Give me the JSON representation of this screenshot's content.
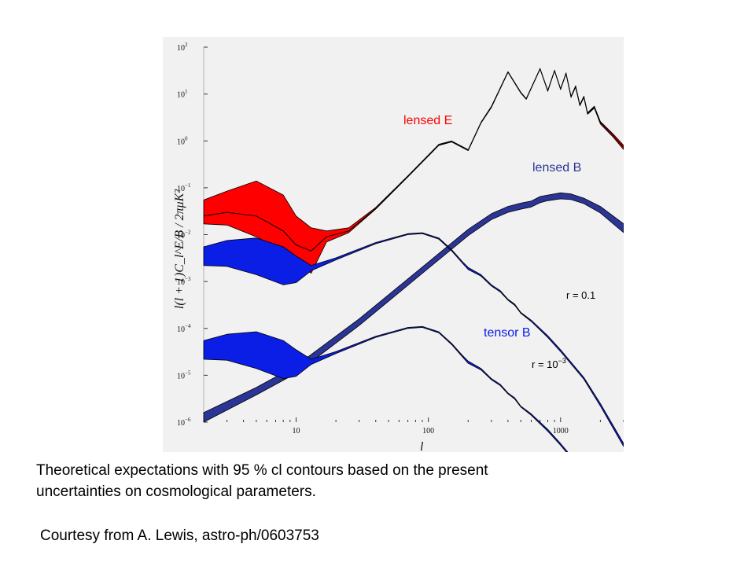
{
  "chart_data": {
    "type": "line",
    "x_scale": "log",
    "y_scale": "log",
    "xlim": [
      2,
      3000
    ],
    "ylim": [
      1e-06,
      100
    ],
    "x_ticks": [
      {
        "value": 10,
        "label": "10"
      },
      {
        "value": 100,
        "label": "100"
      },
      {
        "value": 1000,
        "label": "1000"
      }
    ],
    "y_ticks": [
      {
        "value": 100,
        "base": "10",
        "exp": "2"
      },
      {
        "value": 10,
        "base": "10",
        "exp": "1"
      },
      {
        "value": 1,
        "base": "10",
        "exp": "0"
      },
      {
        "value": 0.1,
        "base": "10",
        "exp": "−1"
      },
      {
        "value": 0.01,
        "base": "10",
        "exp": "−2"
      },
      {
        "value": 0.001,
        "base": "10",
        "exp": "−3"
      },
      {
        "value": 0.0001,
        "base": "10",
        "exp": "−4"
      },
      {
        "value": 1e-05,
        "base": "10",
        "exp": "−5"
      },
      {
        "value": 1e-06,
        "base": "10",
        "exp": "−6"
      }
    ],
    "xlabel": "l",
    "ylabel": "l(l + 1)C_l^E/B / 2πμK²",
    "grid": false,
    "colors": {
      "lensed_E": "#ff0000",
      "lensed_B": "#2b3596",
      "tensor_B": "#0a1ee6",
      "line": "#000000"
    },
    "series": [
      {
        "name": "lensed E",
        "color": "#ff0000",
        "x": [
          2,
          3,
          5,
          8,
          10,
          13,
          17,
          25,
          40,
          70,
          120,
          150,
          200,
          250,
          300,
          400,
          500,
          550,
          700,
          800,
          900,
          1000,
          1100,
          1200,
          1300,
          1400,
          1500,
          1600,
          1800,
          2000,
          2500,
          3000
        ],
        "upper": [
          0.055,
          0.085,
          0.14,
          0.07,
          0.025,
          0.014,
          0.012,
          0.014,
          0.038,
          0.18,
          0.85,
          1.0,
          0.65,
          2.5,
          5.5,
          30,
          11,
          8,
          35,
          12,
          32,
          13,
          28,
          9,
          15,
          6,
          9,
          4,
          5.5,
          2.6,
          1.4,
          0.8
        ],
        "lower": [
          0.017,
          0.016,
          0.009,
          0.0045,
          0.0025,
          0.0015,
          0.007,
          0.011,
          0.035,
          0.17,
          0.8,
          0.95,
          0.62,
          2.4,
          5.2,
          29,
          10.5,
          7.7,
          34,
          11.5,
          31,
          12.5,
          27,
          8.5,
          14,
          5.6,
          8.4,
          3.7,
          5,
          2.3,
          1.2,
          0.65
        ],
        "center": [
          0.025,
          0.03,
          0.025,
          0.012,
          0.006,
          0.0045,
          0.009,
          0.012,
          0.036,
          0.175,
          0.82,
          0.97,
          0.63,
          2.45,
          5.35,
          29.5,
          10.7,
          7.85,
          34.5,
          11.7,
          31.5,
          12.7,
          27.5,
          8.7,
          14.5,
          5.8,
          8.7,
          3.85,
          5.2,
          2.45,
          1.3,
          0.72
        ]
      },
      {
        "name": "lensed B",
        "color": "#2b3596",
        "x": [
          2,
          5,
          10,
          30,
          100,
          200,
          300,
          400,
          500,
          600,
          700,
          800,
          1000,
          1200,
          1500,
          2000,
          3000
        ],
        "upper": [
          1.6e-06,
          5.5e-06,
          1.6e-05,
          0.00016,
          0.0026,
          0.013,
          0.028,
          0.04,
          0.047,
          0.052,
          0.065,
          0.07,
          0.078,
          0.074,
          0.06,
          0.04,
          0.017
        ],
        "lower": [
          1e-06,
          3.8e-06,
          1.1e-05,
          0.000115,
          0.0019,
          0.0095,
          0.021,
          0.03,
          0.035,
          0.039,
          0.048,
          0.053,
          0.058,
          0.056,
          0.046,
          0.029,
          0.011
        ]
      },
      {
        "name": "tensor B r = 0.1",
        "color": "#0a1ee6",
        "x": [
          2,
          3,
          5,
          8,
          10,
          13,
          20,
          40,
          70,
          90,
          120,
          150,
          180,
          200,
          250,
          300,
          350,
          400,
          450,
          500,
          600,
          800,
          1000,
          1500,
          2000,
          3000
        ],
        "upper": [
          0.0055,
          0.0075,
          0.0085,
          0.0055,
          0.0035,
          0.0022,
          0.0032,
          0.0068,
          0.0105,
          0.011,
          0.0085,
          0.0048,
          0.0027,
          0.002,
          0.0014,
          0.00085,
          0.00064,
          0.00042,
          0.00033,
          0.00022,
          0.00015,
          7e-05,
          3.5e-05,
          9e-06,
          2.5e-06,
          3.5e-07
        ],
        "lower": [
          0.0022,
          0.0021,
          0.0014,
          0.00085,
          0.00095,
          0.0017,
          0.0029,
          0.0064,
          0.01,
          0.0105,
          0.008,
          0.0045,
          0.0025,
          0.0018,
          0.0013,
          0.0008,
          0.0006,
          0.0004,
          0.00031,
          0.00021,
          0.00014,
          6.4e-05,
          3.2e-05,
          8.2e-06,
          2.2e-06,
          3e-07
        ]
      },
      {
        "name": "tensor B r = 10^-3",
        "color": "#0a1ee6",
        "x": [
          2,
          3,
          5,
          8,
          10,
          13,
          20,
          40,
          70,
          90,
          120,
          150,
          180,
          200,
          250,
          300,
          350,
          400,
          450,
          500,
          600,
          800,
          1000,
          1500
        ],
        "upper": [
          5.5e-05,
          7.5e-05,
          8.5e-05,
          5.5e-05,
          3.5e-05,
          2.2e-05,
          3.2e-05,
          6.8e-05,
          0.000105,
          0.00011,
          8.5e-05,
          4.8e-05,
          2.7e-05,
          2e-05,
          1.4e-05,
          8.5e-06,
          6.4e-06,
          4.2e-06,
          3.3e-06,
          2.2e-06,
          1.5e-06,
          7e-07,
          3.5e-07,
          9e-08
        ],
        "lower": [
          2.2e-05,
          2.1e-05,
          1.4e-05,
          8.5e-06,
          9.5e-06,
          1.7e-05,
          2.9e-05,
          6.4e-05,
          0.0001,
          0.000105,
          8e-05,
          4.5e-05,
          2.5e-05,
          1.8e-05,
          1.3e-05,
          8e-06,
          6e-06,
          4e-06,
          3.1e-06,
          2.1e-06,
          1.4e-06,
          6.4e-07,
          3.2e-07,
          8.2e-08
        ]
      }
    ],
    "annotations": [
      {
        "text": "lensed E",
        "color": "#ff0000"
      },
      {
        "text": "lensed B",
        "color": "#2b3596"
      },
      {
        "text": "r = 0.1",
        "color": "#000000"
      },
      {
        "text": "tensor B",
        "color": "#0a1ee6"
      },
      {
        "text": "r = 10",
        "sup": "−3",
        "color": "#000000"
      }
    ]
  },
  "caption": "Theoretical expectations with 95 % cl contours based on the present uncertainties on cosmological parameters.",
  "credit": "Courtesy from A. Lewis, astro-ph/0603753"
}
